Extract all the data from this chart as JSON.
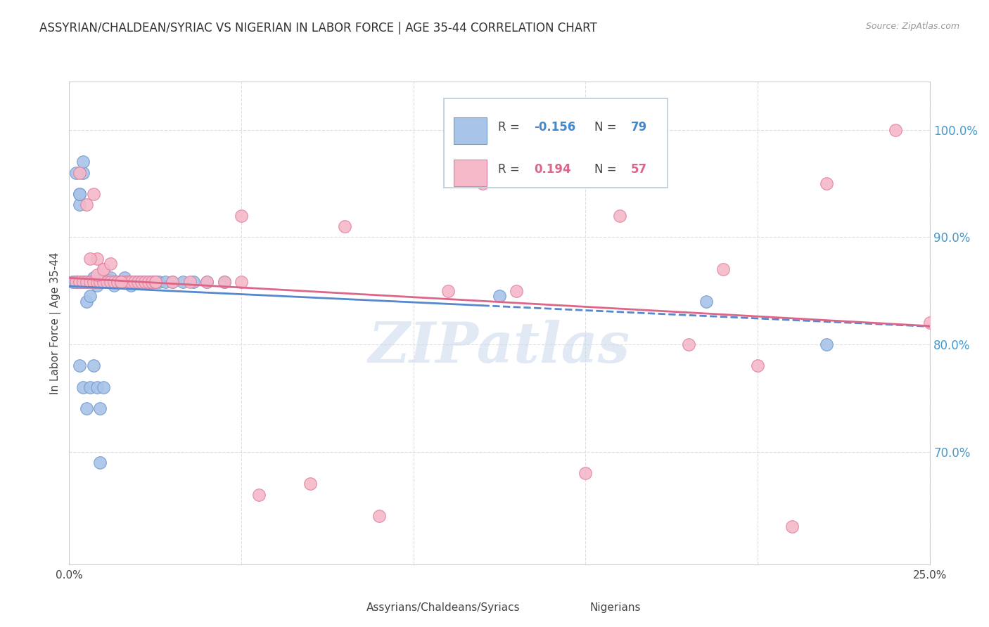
{
  "title": "ASSYRIAN/CHALDEAN/SYRIAC VS NIGERIAN IN LABOR FORCE | AGE 35-44 CORRELATION CHART",
  "source": "Source: ZipAtlas.com",
  "ylabel": "In Labor Force | Age 35-44",
  "ytick_labels": [
    "70.0%",
    "80.0%",
    "90.0%",
    "100.0%"
  ],
  "ytick_values": [
    0.7,
    0.8,
    0.9,
    1.0
  ],
  "xlim": [
    0.0,
    0.25
  ],
  "ylim": [
    0.595,
    1.045
  ],
  "blue_R": -0.156,
  "blue_N": 79,
  "pink_R": 0.194,
  "pink_N": 57,
  "blue_color": "#A8C4E8",
  "pink_color": "#F5B8C8",
  "blue_edge": "#7099CC",
  "pink_edge": "#E080A0",
  "watermark": "ZIPatlas",
  "blue_x": [
    0.001,
    0.002,
    0.002,
    0.003,
    0.003,
    0.003,
    0.004,
    0.004,
    0.004,
    0.005,
    0.005,
    0.005,
    0.006,
    0.006,
    0.006,
    0.007,
    0.007,
    0.007,
    0.007,
    0.008,
    0.008,
    0.008,
    0.008,
    0.009,
    0.009,
    0.009,
    0.01,
    0.01,
    0.01,
    0.011,
    0.011,
    0.012,
    0.012,
    0.012,
    0.013,
    0.013,
    0.013,
    0.014,
    0.014,
    0.015,
    0.015,
    0.016,
    0.016,
    0.017,
    0.018,
    0.018,
    0.019,
    0.02,
    0.021,
    0.022,
    0.023,
    0.024,
    0.025,
    0.026,
    0.028,
    0.03,
    0.033,
    0.036,
    0.04,
    0.045,
    0.003,
    0.004,
    0.005,
    0.006,
    0.007,
    0.008,
    0.009,
    0.01,
    0.002,
    0.003,
    0.004,
    0.005,
    0.006,
    0.007,
    0.008,
    0.009,
    0.125,
    0.185,
    0.22
  ],
  "blue_y": [
    0.858,
    0.858,
    0.858,
    0.93,
    0.858,
    0.94,
    0.858,
    0.858,
    0.96,
    0.84,
    0.858,
    0.858,
    0.858,
    0.845,
    0.858,
    0.858,
    0.862,
    0.858,
    0.858,
    0.858,
    0.858,
    0.858,
    0.855,
    0.858,
    0.858,
    0.858,
    0.858,
    0.858,
    0.862,
    0.858,
    0.86,
    0.858,
    0.858,
    0.862,
    0.858,
    0.858,
    0.855,
    0.858,
    0.858,
    0.858,
    0.858,
    0.858,
    0.862,
    0.858,
    0.858,
    0.855,
    0.858,
    0.858,
    0.858,
    0.858,
    0.858,
    0.858,
    0.858,
    0.858,
    0.858,
    0.858,
    0.858,
    0.858,
    0.858,
    0.858,
    0.78,
    0.76,
    0.74,
    0.76,
    0.78,
    0.76,
    0.74,
    0.76,
    0.96,
    0.94,
    0.97,
    0.858,
    0.858,
    0.858,
    0.858,
    0.69,
    0.845,
    0.84,
    0.8
  ],
  "pink_x": [
    0.002,
    0.003,
    0.004,
    0.005,
    0.006,
    0.007,
    0.008,
    0.008,
    0.009,
    0.01,
    0.01,
    0.011,
    0.012,
    0.013,
    0.014,
    0.015,
    0.016,
    0.017,
    0.018,
    0.019,
    0.02,
    0.021,
    0.022,
    0.023,
    0.024,
    0.025,
    0.03,
    0.035,
    0.04,
    0.05,
    0.006,
    0.008,
    0.01,
    0.012,
    0.05,
    0.08,
    0.12,
    0.15,
    0.005,
    0.007,
    0.055,
    0.07,
    0.09,
    0.11,
    0.13,
    0.16,
    0.2,
    0.21,
    0.24,
    0.25,
    0.19,
    0.22,
    0.18,
    0.003,
    0.015,
    0.025,
    0.045
  ],
  "pink_y": [
    0.858,
    0.858,
    0.858,
    0.858,
    0.858,
    0.858,
    0.858,
    0.88,
    0.858,
    0.858,
    0.87,
    0.858,
    0.858,
    0.858,
    0.858,
    0.858,
    0.858,
    0.858,
    0.858,
    0.858,
    0.858,
    0.858,
    0.858,
    0.858,
    0.858,
    0.858,
    0.858,
    0.858,
    0.858,
    0.858,
    0.88,
    0.865,
    0.87,
    0.875,
    0.92,
    0.91,
    0.95,
    0.68,
    0.93,
    0.94,
    0.66,
    0.67,
    0.64,
    0.85,
    0.85,
    0.92,
    0.78,
    0.63,
    1.0,
    0.82,
    0.87,
    0.95,
    0.8,
    0.96,
    0.858,
    0.858,
    0.858
  ]
}
